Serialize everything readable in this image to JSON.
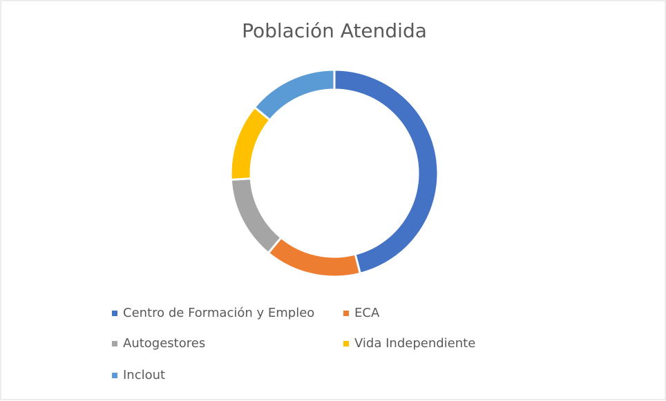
{
  "chart_data": {
    "type": "donut",
    "title": "Población Atendida",
    "categories": [
      "Centro de Formación y Empleo",
      "ECA",
      "Autogestores",
      "Vida Independiente",
      "Inclout"
    ],
    "values": [
      46,
      15,
      13,
      12,
      14
    ],
    "colors": [
      "#4472c4",
      "#ed7d31",
      "#a5a5a5",
      "#ffc000",
      "#5b9bd5"
    ],
    "legend": "bottom"
  }
}
